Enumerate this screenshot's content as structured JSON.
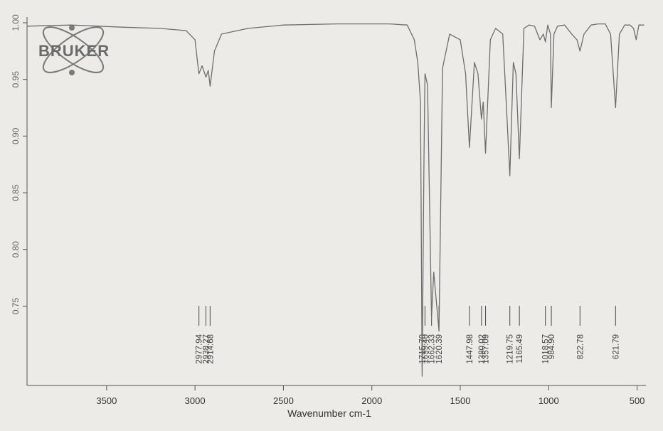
{
  "logo": {
    "text": "BRUKER"
  },
  "chart_data": {
    "type": "line",
    "title": "",
    "xlabel": "Wavenumber cm-1",
    "ylabel": "",
    "x_reversed": true,
    "xlim": [
      3950,
      450
    ],
    "ylim": [
      0.68,
      1.005
    ],
    "x_ticks": [
      3500,
      3000,
      2500,
      2000,
      1500,
      1000,
      500
    ],
    "x_tick_labels": [
      "3500",
      "3000",
      "2500",
      "2000",
      "1500",
      "1000",
      "500"
    ],
    "y_ticks": [
      0.75,
      0.8,
      0.85,
      0.9,
      0.95,
      1.0
    ],
    "y_tick_labels": [
      "0.75",
      "0.80",
      "0.85",
      "0.90",
      "0.95",
      "1.00"
    ],
    "series": [
      {
        "points": [
          [
            3950,
            0.997
          ],
          [
            3700,
            0.998
          ],
          [
            3400,
            0.996
          ],
          [
            3200,
            0.995
          ],
          [
            3050,
            0.993
          ],
          [
            3000,
            0.985
          ],
          [
            2977.94,
            0.955
          ],
          [
            2960,
            0.962
          ],
          [
            2938.27,
            0.952
          ],
          [
            2925,
            0.958
          ],
          [
            2914.68,
            0.944
          ],
          [
            2890,
            0.975
          ],
          [
            2850,
            0.99
          ],
          [
            2700,
            0.995
          ],
          [
            2500,
            0.998
          ],
          [
            2200,
            0.999
          ],
          [
            1900,
            0.999
          ],
          [
            1800,
            0.998
          ],
          [
            1760,
            0.985
          ],
          [
            1740,
            0.965
          ],
          [
            1725,
            0.93
          ],
          [
            1715.7,
            0.688
          ],
          [
            1705,
            0.88
          ],
          [
            1699.4,
            0.955
          ],
          [
            1685,
            0.945
          ],
          [
            1662.33,
            0.74
          ],
          [
            1650,
            0.78
          ],
          [
            1620.39,
            0.728
          ],
          [
            1600,
            0.96
          ],
          [
            1560,
            0.99
          ],
          [
            1500,
            0.985
          ],
          [
            1470,
            0.955
          ],
          [
            1447.98,
            0.89
          ],
          [
            1420,
            0.965
          ],
          [
            1400,
            0.955
          ],
          [
            1380.02,
            0.915
          ],
          [
            1370,
            0.93
          ],
          [
            1357.09,
            0.885
          ],
          [
            1330,
            0.985
          ],
          [
            1300,
            0.995
          ],
          [
            1260,
            0.99
          ],
          [
            1240,
            0.93
          ],
          [
            1219.75,
            0.865
          ],
          [
            1200,
            0.965
          ],
          [
            1185,
            0.955
          ],
          [
            1165.49,
            0.88
          ],
          [
            1140,
            0.995
          ],
          [
            1110,
            0.998
          ],
          [
            1080,
            0.997
          ],
          [
            1050,
            0.985
          ],
          [
            1030,
            0.99
          ],
          [
            1018.57,
            0.983
          ],
          [
            1005,
            0.998
          ],
          [
            990,
            0.99
          ],
          [
            984.9,
            0.925
          ],
          [
            970,
            0.99
          ],
          [
            950,
            0.997
          ],
          [
            910,
            0.998
          ],
          [
            870,
            0.99
          ],
          [
            840,
            0.985
          ],
          [
            822.78,
            0.975
          ],
          [
            800,
            0.99
          ],
          [
            760,
            0.998
          ],
          [
            720,
            0.999
          ],
          [
            680,
            0.999
          ],
          [
            650,
            0.99
          ],
          [
            621.79,
            0.925
          ],
          [
            600,
            0.99
          ],
          [
            570,
            0.998
          ],
          [
            540,
            0.998
          ],
          [
            520,
            0.995
          ],
          [
            505,
            0.985
          ],
          [
            490,
            0.998
          ],
          [
            460,
            0.998
          ]
        ]
      }
    ],
    "peak_labels": [
      "2977.94",
      "2938.27",
      "2914.68",
      "1715.70",
      "1699.40",
      "1662.33",
      "1620.39",
      "1447.98",
      "1380.02",
      "1357.09",
      "1219.75",
      "1165.49",
      "1018.57",
      "984.90",
      "822.78",
      "621.79"
    ]
  }
}
